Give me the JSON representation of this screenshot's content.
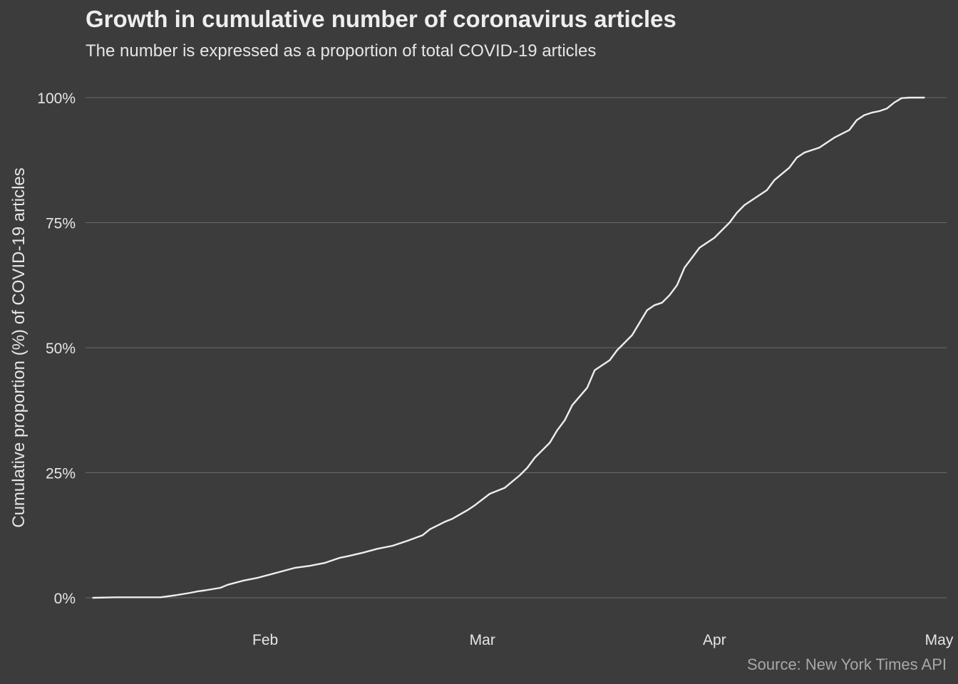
{
  "chart_data": {
    "type": "line",
    "title": "Growth in cumulative number of coronavirus articles",
    "subtitle": "The number is expressed as a proportion of total COVID-19 articles",
    "caption": "Source: New York Times API",
    "xlabel": "",
    "ylabel": "Cumulative proportion (%) of COVID-19 articles",
    "xlim": [
      "2020-01-08",
      "2020-05-02"
    ],
    "ylim": [
      0,
      100
    ],
    "x_ticks": [
      {
        "date": "2020-02-01",
        "label": "Feb"
      },
      {
        "date": "2020-03-01",
        "label": "Mar"
      },
      {
        "date": "2020-04-01",
        "label": "Apr"
      },
      {
        "date": "2020-05-01",
        "label": "May"
      }
    ],
    "y_ticks": [
      {
        "value": 0,
        "label": "0%"
      },
      {
        "value": 25,
        "label": "25%"
      },
      {
        "value": 50,
        "label": "50%"
      },
      {
        "value": 75,
        "label": "75%"
      },
      {
        "value": 100,
        "label": "100%"
      }
    ],
    "grid": "horizontal",
    "line_color": "#eeeeee",
    "background_color": "#3c3c3c",
    "series": [
      {
        "x": [
          "2020-01-09",
          "2020-01-12",
          "2020-01-15",
          "2020-01-18",
          "2020-01-20",
          "2020-01-22",
          "2020-01-23",
          "2020-01-24",
          "2020-01-26",
          "2020-01-27",
          "2020-01-29",
          "2020-01-31",
          "2020-02-02",
          "2020-02-03",
          "2020-02-05",
          "2020-02-07",
          "2020-02-09",
          "2020-02-11",
          "2020-02-12",
          "2020-02-14",
          "2020-02-16",
          "2020-02-18",
          "2020-02-20",
          "2020-02-22",
          "2020-02-23",
          "2020-02-25",
          "2020-02-26",
          "2020-02-28",
          "2020-02-29",
          "2020-03-02",
          "2020-03-04",
          "2020-03-06",
          "2020-03-07",
          "2020-03-08",
          "2020-03-10",
          "2020-03-11",
          "2020-03-12",
          "2020-03-13",
          "2020-03-15",
          "2020-03-16",
          "2020-03-18",
          "2020-03-19",
          "2020-03-21",
          "2020-03-22",
          "2020-03-23",
          "2020-03-24",
          "2020-03-25",
          "2020-03-26",
          "2020-03-27",
          "2020-03-28",
          "2020-03-29",
          "2020-03-30",
          "2020-03-31",
          "2020-04-01",
          "2020-04-02",
          "2020-04-03",
          "2020-04-04",
          "2020-04-05",
          "2020-04-06",
          "2020-04-07",
          "2020-04-08",
          "2020-04-09",
          "2020-04-11",
          "2020-04-12",
          "2020-04-13",
          "2020-04-15",
          "2020-04-17",
          "2020-04-19",
          "2020-04-20",
          "2020-04-21",
          "2020-04-22",
          "2020-04-23",
          "2020-04-24",
          "2020-04-25",
          "2020-04-26",
          "2020-04-27",
          "2020-04-28",
          "2020-04-29"
        ],
        "y": [
          0,
          0.1,
          0.1,
          0.1,
          0.5,
          1.0,
          1.3,
          1.5,
          2.0,
          2.6,
          3.4,
          4.0,
          4.8,
          5.2,
          6.0,
          6.4,
          7.0,
          8.0,
          8.3,
          9.0,
          9.8,
          10.4,
          11.4,
          12.5,
          13.7,
          15.2,
          15.8,
          17.5,
          18.5,
          20.8,
          22.0,
          24.5,
          26.0,
          28.0,
          31.0,
          33.5,
          35.5,
          38.5,
          42.0,
          45.5,
          47.5,
          49.5,
          52.5,
          55.0,
          57.5,
          58.5,
          59.0,
          60.5,
          62.5,
          66.0,
          68.0,
          70.0,
          71.0,
          72.0,
          73.5,
          75.0,
          77.0,
          78.5,
          79.5,
          80.5,
          81.5,
          83.5,
          86.0,
          88.0,
          89.0,
          90.0,
          92.0,
          93.5,
          95.5,
          96.5,
          97.0,
          97.3,
          97.8,
          99.0,
          99.9,
          100,
          100,
          100
        ]
      }
    ]
  }
}
